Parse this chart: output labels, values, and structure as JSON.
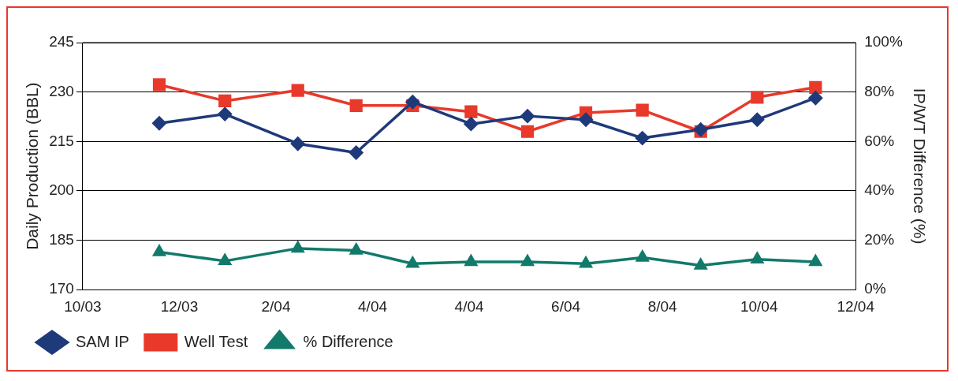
{
  "chart_data": {
    "type": "line",
    "ylabel": "Daily Production (BBL)",
    "y2label": "IP/WT Difference (%)",
    "x": [
      "2003-12-06",
      "2004-01-11",
      "2004-02-20",
      "2004-03-23",
      "2004-04-23",
      "2004-05-25",
      "2004-06-25",
      "2004-07-27",
      "2004-08-27",
      "2004-09-28",
      "2004-10-29",
      "2004-11-30"
    ],
    "xlim": [
      "2003-10-25",
      "2004-12-22"
    ],
    "xticks": [
      {
        "value": "2003-10-25",
        "label": "10/03"
      },
      {
        "value": "2003-12-17",
        "label": "12/03"
      },
      {
        "value": "2004-02-08",
        "label": "2/04"
      },
      {
        "value": "2004-04-01",
        "label": "4/04"
      },
      {
        "value": "2004-05-24",
        "label": "4/04"
      },
      {
        "value": "2004-07-16",
        "label": "6/04"
      },
      {
        "value": "2004-09-07",
        "label": "8/04"
      },
      {
        "value": "2004-10-30",
        "label": "10/04"
      },
      {
        "value": "2004-12-22",
        "label": "12/04"
      }
    ],
    "ylim": [
      170,
      245
    ],
    "yticks": [
      170,
      185,
      200,
      215,
      230,
      245
    ],
    "y2lim": [
      0,
      100
    ],
    "y2ticks": [
      {
        "value": 0,
        "label": "0%"
      },
      {
        "value": 20,
        "label": "20%"
      },
      {
        "value": 40,
        "label": "40%"
      },
      {
        "value": 60,
        "label": "60%"
      },
      {
        "value": 80,
        "label": "80%"
      },
      {
        "value": 100,
        "label": "100%"
      }
    ],
    "series": [
      {
        "name": "SAM IP",
        "color": "#1f3a7a",
        "marker": "diamond",
        "values": [
          220.5,
          223.3,
          214.3,
          211.6,
          227,
          220.3,
          222.7,
          221.6,
          216,
          218.6,
          221.6,
          228.2
        ]
      },
      {
        "name": "Well Test",
        "color": "#e8392b",
        "marker": "square",
        "values": [
          232.2,
          227.3,
          230.5,
          225.9,
          225.9,
          224,
          218,
          223.7,
          224.5,
          218,
          228.4,
          231.4
        ]
      },
      {
        "name": "% Difference",
        "color": "#127a6a",
        "marker": "triangle",
        "axis": "y2",
        "values": [
          15.2,
          11.6,
          16.7,
          15.9,
          10.5,
          11.2,
          11.2,
          10.5,
          13,
          9.8,
          12.3,
          11.2
        ]
      }
    ],
    "grid": "y",
    "legend": "bottom",
    "line_style": "solid"
  }
}
